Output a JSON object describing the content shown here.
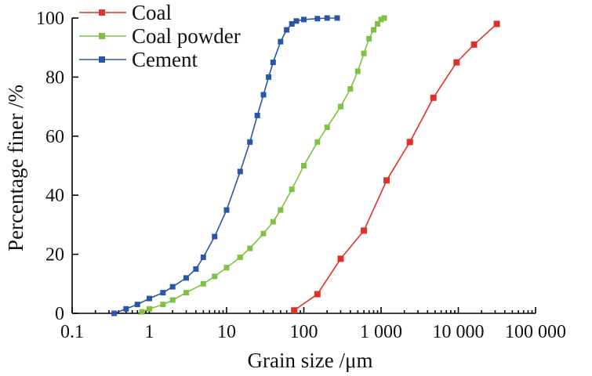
{
  "chart_data": {
    "type": "line",
    "title": "",
    "xlabel": "Grain size /μm",
    "ylabel": "Percentage finer /%",
    "x_scale": "log",
    "xlim": [
      0.1,
      100000
    ],
    "ylim": [
      0,
      100
    ],
    "x_ticks": [
      0.1,
      1,
      10,
      100,
      1000,
      10000,
      100000
    ],
    "x_tick_labels": [
      "0.1",
      "1",
      "10",
      "100",
      "1 000",
      "10 000",
      "100 000"
    ],
    "y_ticks": [
      0,
      20,
      40,
      60,
      80,
      100
    ],
    "y_tick_labels": [
      "0",
      "20",
      "40",
      "60",
      "80",
      "100"
    ],
    "grid": false,
    "legend_position": "top-left",
    "series": [
      {
        "name": "Coal",
        "color": "#e0302a",
        "marker": "square",
        "x": [
          75,
          150,
          300,
          600,
          1180,
          2360,
          4750,
          9500,
          16000,
          31500
        ],
        "y": [
          1,
          6.5,
          18.5,
          28,
          45,
          58,
          73,
          85,
          91,
          98
        ]
      },
      {
        "name": "Coal powder",
        "color": "#7dc242",
        "marker": "square",
        "x": [
          0.8,
          1,
          1.5,
          2,
          3,
          5,
          7,
          10,
          15,
          20,
          30,
          40,
          50,
          70,
          100,
          150,
          200,
          300,
          400,
          500,
          600,
          700,
          800,
          900,
          1000,
          1100
        ],
        "y": [
          0.5,
          1.5,
          3,
          4.5,
          7,
          10,
          12.5,
          15.5,
          19,
          22,
          27,
          31,
          35,
          42,
          50,
          58,
          63,
          70,
          76,
          82,
          88,
          93,
          96,
          98,
          99.5,
          100
        ]
      },
      {
        "name": "Cement",
        "color": "#2a56a8",
        "marker": "square",
        "x": [
          0.35,
          0.5,
          0.7,
          1,
          1.5,
          2,
          3,
          4,
          5,
          7,
          10,
          15,
          20,
          25,
          30,
          35,
          40,
          50,
          60,
          70,
          80,
          100,
          150,
          200,
          270
        ],
        "y": [
          0,
          1.5,
          3,
          5,
          7,
          9,
          12,
          15,
          19,
          26,
          35,
          48,
          58,
          67,
          74,
          80,
          85,
          92,
          96,
          98,
          99,
          99.5,
          99.8,
          100,
          100
        ]
      }
    ]
  }
}
